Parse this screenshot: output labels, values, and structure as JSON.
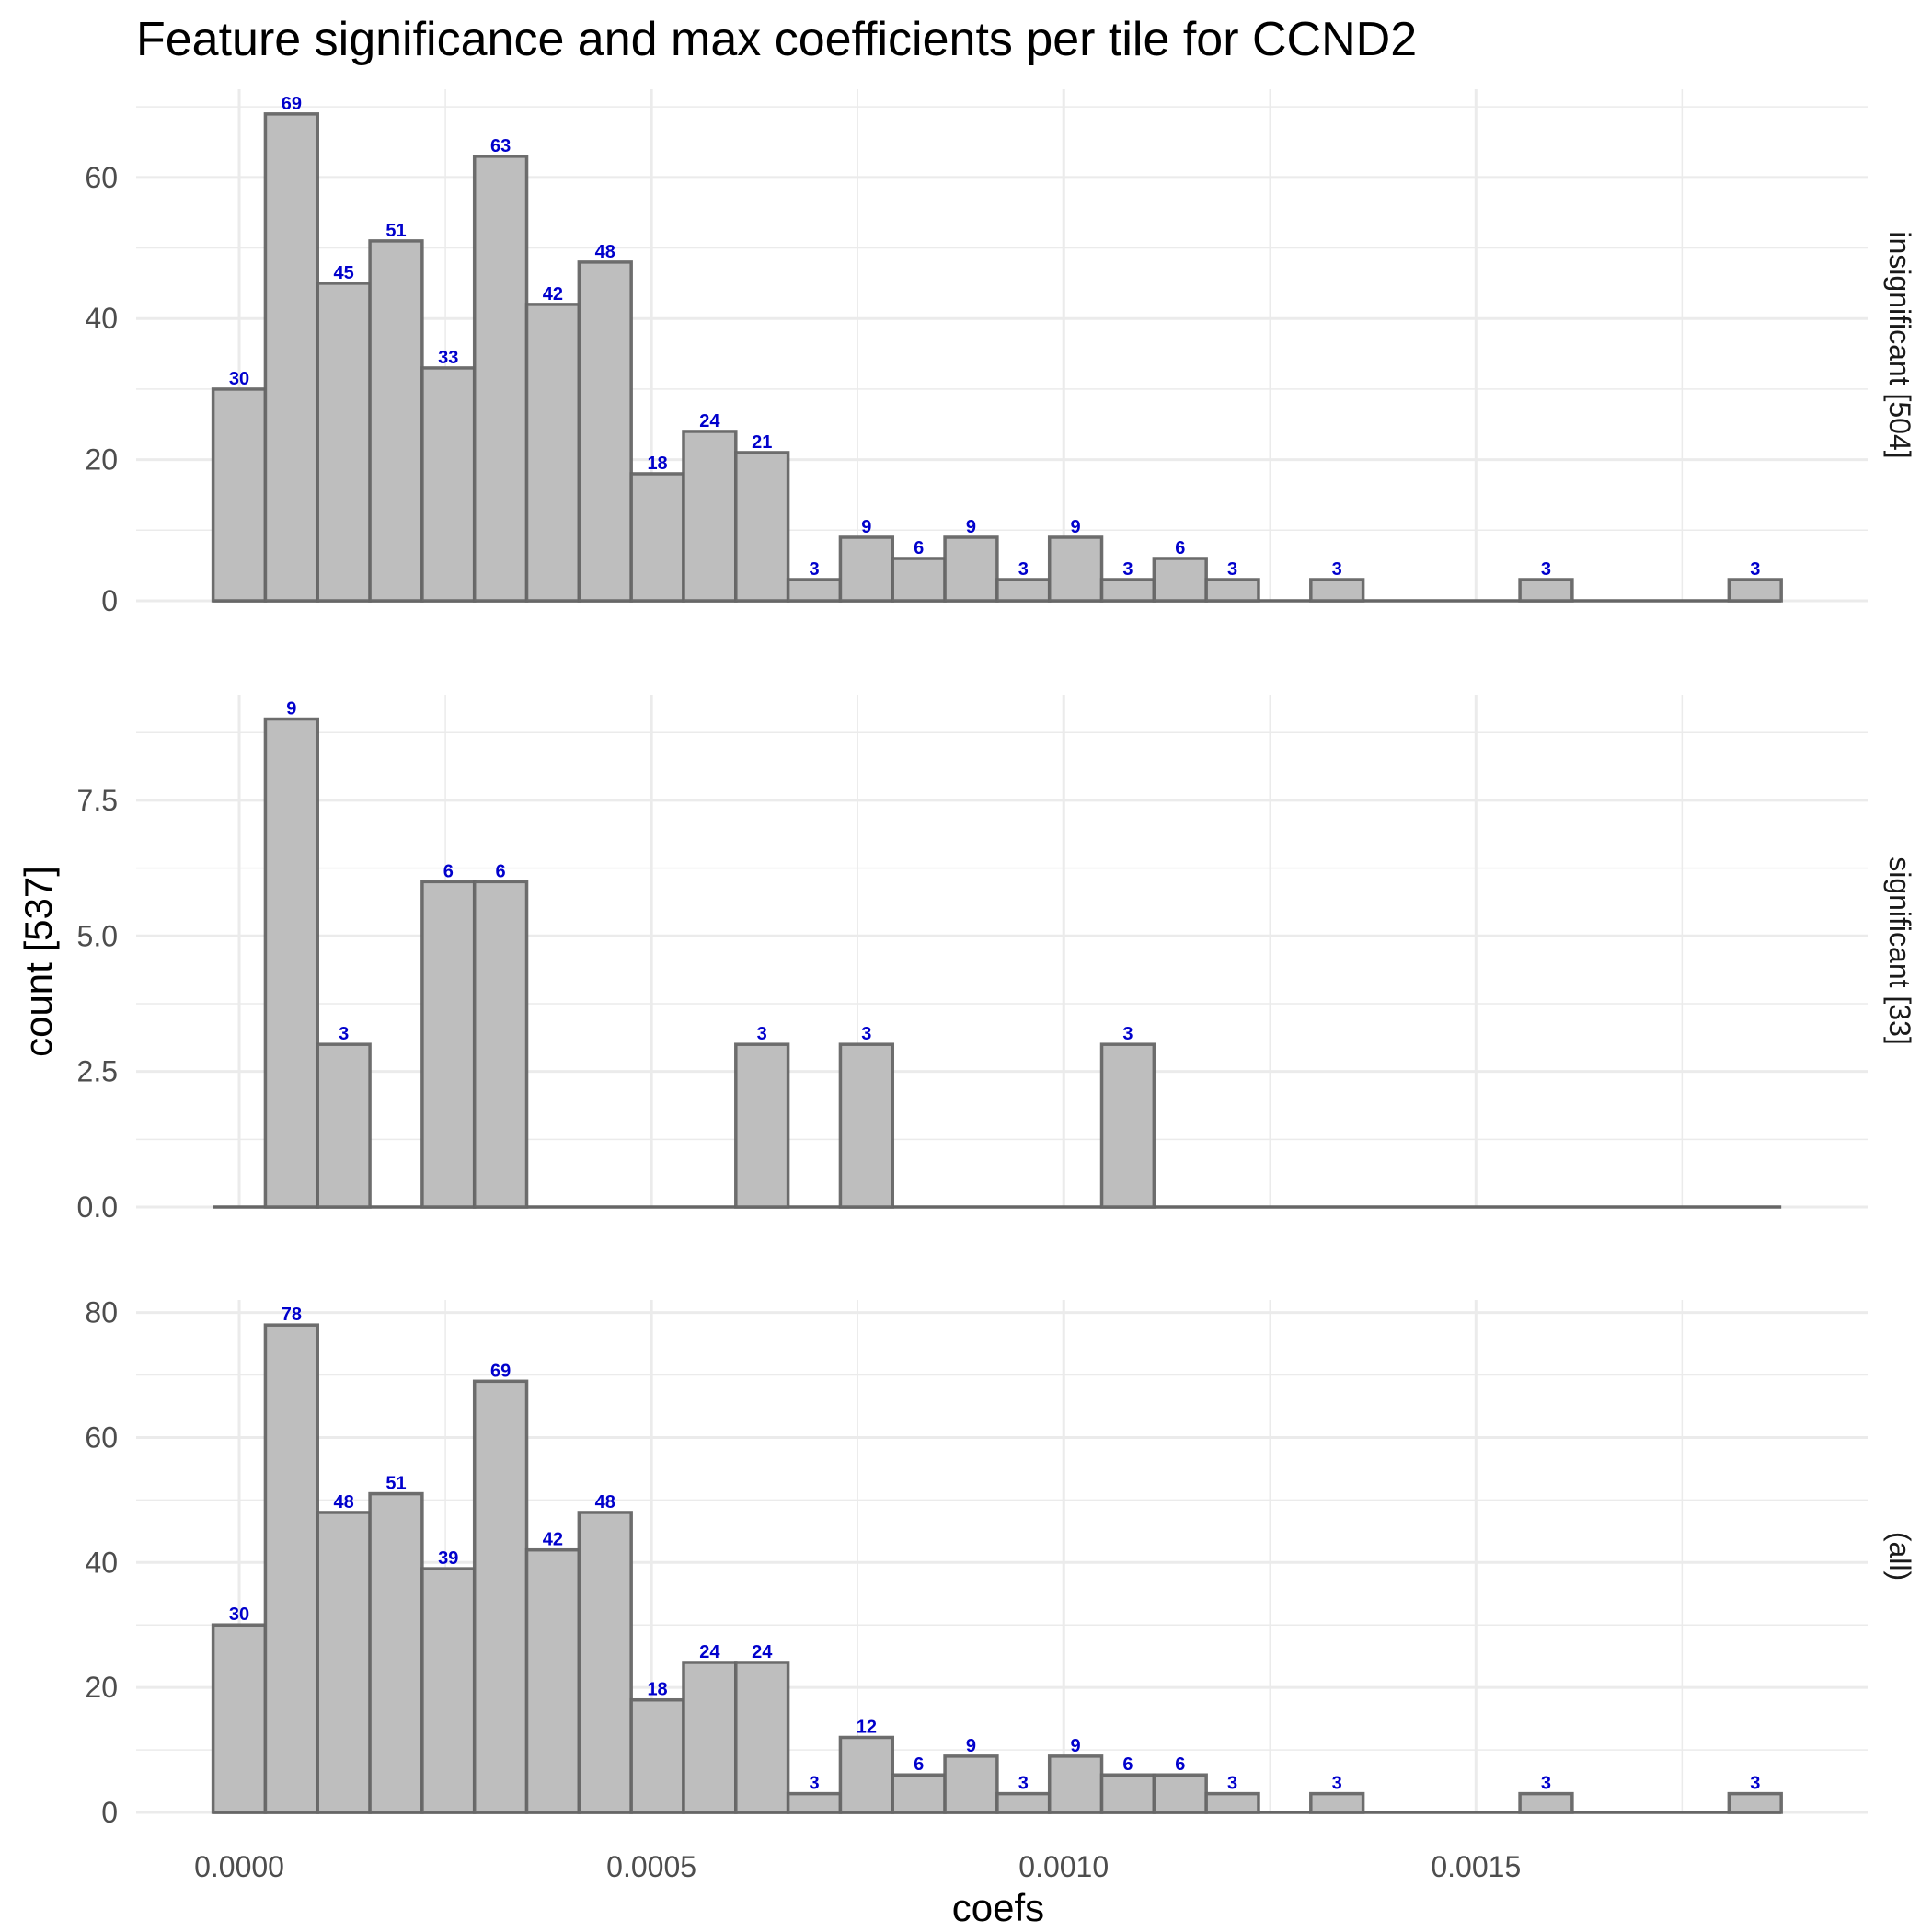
{
  "chart_data": {
    "type": "bar",
    "title": "Feature significance and max coefficients per tile for CCND2",
    "xlabel": "coefs",
    "ylabel": "count [537]",
    "x_ticks": [
      0.0,
      0.0005,
      0.001,
      0.0015
    ],
    "x_tick_labels": [
      "0.0000",
      "0.0005",
      "0.0010",
      "0.0015"
    ],
    "xlim": [
      -0.000125,
      0.001975
    ],
    "bin_width": 6.34e-05,
    "bin_start": -3.17e-05,
    "bin_count": 30,
    "grid": true,
    "panels": [
      {
        "strip": "insignificant [504]",
        "ylim": [
          0,
          72.5
        ],
        "y_ticks": [
          0,
          20,
          40,
          60
        ],
        "y_tick_labels": [
          "0",
          "20",
          "40",
          "60"
        ],
        "counts": [
          30,
          69,
          45,
          51,
          33,
          63,
          42,
          48,
          18,
          24,
          21,
          3,
          9,
          6,
          9,
          3,
          9,
          3,
          6,
          3,
          0,
          3,
          0,
          0,
          0,
          3,
          0,
          0,
          0,
          3
        ]
      },
      {
        "strip": "significant [33]",
        "ylim": [
          0,
          9.45
        ],
        "y_ticks": [
          0,
          2.5,
          5,
          7.5
        ],
        "y_tick_labels": [
          "0.0",
          "2.5",
          "5.0",
          "7.5"
        ],
        "counts": [
          0,
          9,
          3,
          0,
          6,
          6,
          0,
          0,
          0,
          0,
          3,
          0,
          3,
          0,
          0,
          0,
          0,
          3,
          0,
          0,
          0,
          0,
          0,
          0,
          0,
          0,
          0,
          0,
          0,
          0
        ]
      },
      {
        "strip": "(all)",
        "ylim": [
          0,
          82
        ],
        "y_ticks": [
          0,
          20,
          40,
          60,
          80
        ],
        "y_tick_labels": [
          "0",
          "20",
          "40",
          "60",
          "80"
        ],
        "counts": [
          30,
          78,
          48,
          51,
          39,
          69,
          42,
          48,
          18,
          24,
          24,
          3,
          12,
          6,
          9,
          3,
          9,
          6,
          6,
          3,
          0,
          3,
          0,
          0,
          0,
          3,
          0,
          0,
          0,
          3
        ]
      }
    ],
    "colors": {
      "bar_fill": "#bebebe",
      "bar_outline": "#666666",
      "data_label": "#0000cc",
      "grid": "#ebebeb"
    }
  }
}
